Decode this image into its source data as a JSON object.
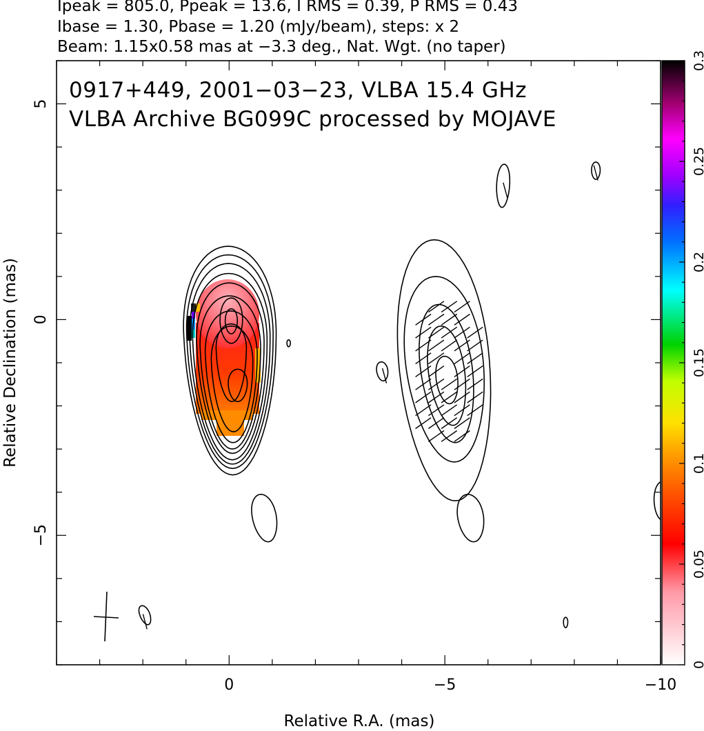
{
  "header": {
    "line1": "Ipeak = 805.0, Ppeak = 13.6, I RMS = 0.39, P RMS = 0.43",
    "line2": "Ibase = 1.30, Pbase = 1.20 (mJy/beam), steps: x 2",
    "line3": "Beam: 1.15x0.58 mas at −3.3 deg., Nat. Wgt. (no taper)"
  },
  "annotation": {
    "line1": "0917+449, 2001−03−23, VLBA 15.4 GHz",
    "line2": "VLBA Archive BG099C processed by MOJAVE"
  },
  "chart_data": {
    "type": "heatmap",
    "description_free": true,
    "xlabel": "Relative R.A. (mas)",
    "ylabel": "Relative Declination (mas)",
    "xlim": [
      4,
      -10
    ],
    "ylim": [
      -8,
      6
    ],
    "x_ticks": [
      {
        "value": 0,
        "label": "0"
      },
      {
        "value": -5,
        "label": "−5"
      },
      {
        "value": -10,
        "label": "−10"
      }
    ],
    "y_ticks": [
      {
        "value": 5,
        "label": "5"
      },
      {
        "value": 0,
        "label": "0"
      },
      {
        "value": -5,
        "label": "−5"
      }
    ],
    "colorbar": {
      "range": [
        0,
        0.3
      ],
      "ticks": [
        {
          "value": 0,
          "label": "0"
        },
        {
          "value": 0.05,
          "label": "0.05"
        },
        {
          "value": 0.1,
          "label": "0.1"
        },
        {
          "value": 0.15,
          "label": "0.15"
        },
        {
          "value": 0.2,
          "label": "0.2"
        },
        {
          "value": 0.25,
          "label": "0.25"
        },
        {
          "value": 0.3,
          "label": "0.3"
        }
      ],
      "stops": [
        "#ffffff",
        "#ff0000",
        "#ffa500",
        "#ffff00",
        "#00c800",
        "#00ffff",
        "#0000ff",
        "#ff00ff",
        "#000000"
      ]
    },
    "stokes_i": {
      "peak_mJy_per_beam": 805.0,
      "base_mJy_per_beam": 1.3,
      "contour_step_factor": 2,
      "core_position_mas": [
        0,
        0
      ],
      "jet_component_position_mas": [
        -5,
        -1.3
      ]
    },
    "polarization": {
      "peak_mJy_per_beam": 13.6,
      "base_mJy_per_beam": 1.2,
      "fractional_pol_core_typical": 0.05
    },
    "beam": {
      "major_mas": 1.15,
      "minor_mas": 0.58,
      "pa_deg": -3.3
    }
  }
}
